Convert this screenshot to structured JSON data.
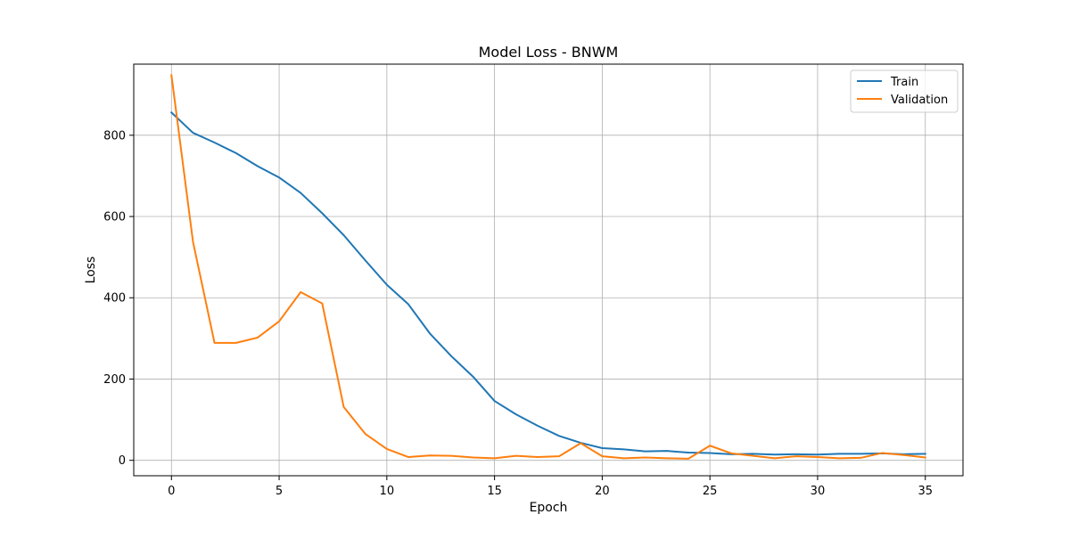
{
  "chart_data": {
    "type": "line",
    "title": "Model Loss - BNWM",
    "xlabel": "Epoch",
    "ylabel": "Loss",
    "xlim": [
      -1.75,
      36.75
    ],
    "ylim": [
      -38,
      975
    ],
    "xticks": [
      0,
      5,
      10,
      15,
      20,
      25,
      30,
      35
    ],
    "xtick_labels": [
      "0",
      "5",
      "10",
      "15",
      "20",
      "25",
      "30",
      "35"
    ],
    "yticks": [
      0,
      200,
      400,
      600,
      800
    ],
    "ytick_labels": [
      "0",
      "200",
      "400",
      "600",
      "800"
    ],
    "grid": true,
    "legend_position": "upper right",
    "x": [
      0,
      1,
      2,
      3,
      4,
      5,
      6,
      7,
      8,
      9,
      10,
      11,
      12,
      13,
      14,
      15,
      16,
      17,
      18,
      19,
      20,
      21,
      22,
      23,
      24,
      25,
      26,
      27,
      28,
      29,
      30,
      31,
      32,
      33,
      34,
      35
    ],
    "series": [
      {
        "name": "Train",
        "color": "#1f77b4",
        "values": [
          856,
          806,
          782,
          756,
          724,
          696,
          658,
          608,
          554,
          492,
          432,
          384,
          312,
          256,
          206,
          146,
          113,
          85,
          60,
          43,
          30,
          27,
          22,
          23,
          19,
          18,
          15,
          16,
          14,
          15,
          14,
          16,
          16,
          17,
          15,
          16
        ]
      },
      {
        "name": "Validation",
        "color": "#ff7f0e",
        "values": [
          948,
          538,
          289,
          289,
          302,
          342,
          414,
          386,
          131,
          65,
          28,
          8,
          12,
          11,
          7,
          5,
          11,
          8,
          10,
          42,
          10,
          5,
          7,
          5,
          4,
          36,
          17,
          11,
          5,
          10,
          8,
          5,
          6,
          18,
          13,
          7
        ]
      }
    ]
  }
}
